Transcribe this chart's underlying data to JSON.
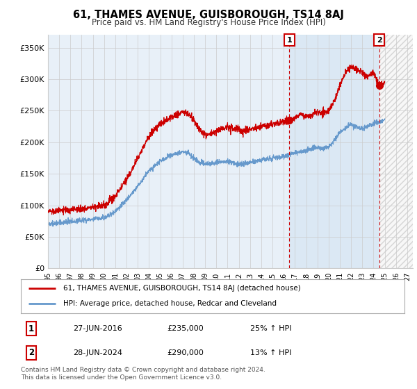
{
  "title": "61, THAMES AVENUE, GUISBOROUGH, TS14 8AJ",
  "subtitle": "Price paid vs. HM Land Registry's House Price Index (HPI)",
  "ylabel_ticks": [
    "£0",
    "£50K",
    "£100K",
    "£150K",
    "£200K",
    "£250K",
    "£300K",
    "£350K"
  ],
  "ytick_values": [
    0,
    50000,
    100000,
    150000,
    200000,
    250000,
    300000,
    350000
  ],
  "ylim": [
    0,
    370000
  ],
  "xlim_start": 1995.0,
  "xlim_end": 2027.5,
  "sale1_year": 2016,
  "sale1_month": 6,
  "sale1_price": 235000,
  "sale1_label": "1",
  "sale2_year": 2024,
  "sale2_month": 6,
  "sale2_price": 290000,
  "sale2_label": "2",
  "red_color": "#cc0000",
  "blue_color": "#6699cc",
  "blue_fill_color": "#ddeeff",
  "hatch_color": "#bbbbbb",
  "grid_color": "#cccccc",
  "background_color": "#e8f0f8",
  "plot_bg_color": "#ffffff",
  "legend1_text": "61, THAMES AVENUE, GUISBOROUGH, TS14 8AJ (detached house)",
  "legend2_text": "HPI: Average price, detached house, Redcar and Cleveland",
  "annotation1_date": "27-JUN-2016",
  "annotation1_price": "£235,000",
  "annotation1_pct": "25% ↑ HPI",
  "annotation2_date": "28-JUN-2024",
  "annotation2_price": "£290,000",
  "annotation2_pct": "13% ↑ HPI",
  "footer": "Contains HM Land Registry data © Crown copyright and database right 2024.\nThis data is licensed under the Open Government Licence v3.0."
}
